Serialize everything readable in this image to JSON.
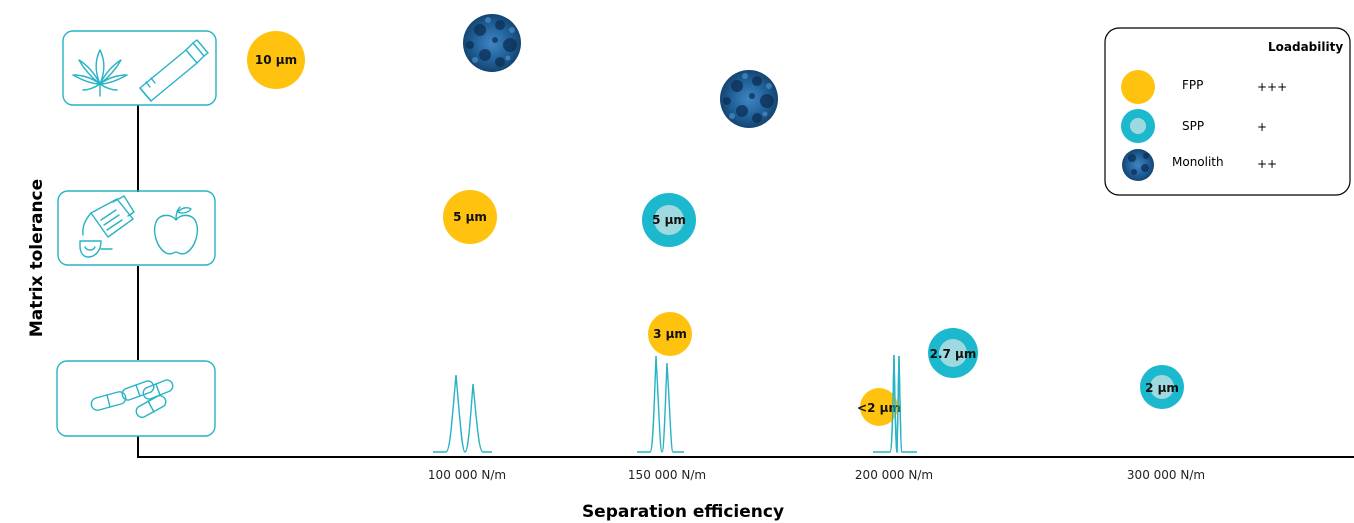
{
  "axes": {
    "x_label": "Separation efficiency",
    "y_label": "Matrix tolerance",
    "x_ticks": [
      "100 000 N/m",
      "150 000 N/m",
      "200 000 N/m",
      "300 000 N/m"
    ]
  },
  "legend": {
    "header": "Loadability",
    "items": [
      {
        "name": "FPP",
        "value": "+++"
      },
      {
        "name": "SPP",
        "value": "+"
      },
      {
        "name": "Monolith",
        "value": "++"
      }
    ]
  },
  "particles": {
    "fpp_10": "10 µm",
    "fpp_5": "5 µm",
    "spp_5": "5 µm",
    "fpp_3": "3 µm",
    "spp_27": "2.7 µm",
    "fpp_lt2": "<2 µm",
    "spp_2": "2 µm"
  },
  "matrix_icons": [
    "cannabis-leaf-icon",
    "ointment-tube-icon",
    "medicine-bottle-icon",
    "apple-icon",
    "capsules-icon"
  ],
  "colors": {
    "fpp": "#FFC20E",
    "spp_outer": "#1BB8CE",
    "spp_inner": "#9ED9DF",
    "teal_line": "#26B3C4",
    "monolith": "#1E5F97",
    "axis": "#000000"
  }
}
